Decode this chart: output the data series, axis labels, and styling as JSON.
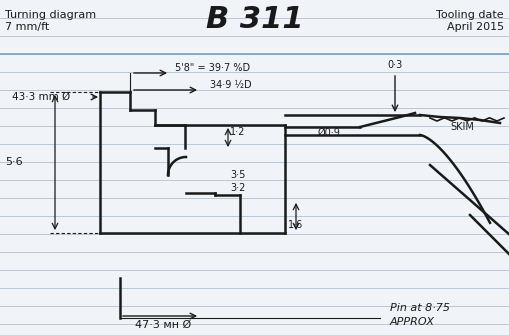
{
  "title": "B 311",
  "top_left_line1": "Turning diagram",
  "top_left_line2": "7 mm/ft",
  "top_right_line1": "Tooling date",
  "top_right_line2": "April 2015",
  "bg_color": "#f0f4f8",
  "line_color": "#1a1a1a",
  "ruled_line_color": "#b8c8d8",
  "annotations": {
    "dim_439": "43·3 mm Ø",
    "dim_58": "5'8\" = 39·7 %D",
    "dim_349": "34·9 ½D",
    "dim_03": "0·3",
    "dim_12": "1·2",
    "dim_35": "3·5",
    "dim_32": "3·2",
    "dim_16": "1·6",
    "dim_09": "Ø0·9",
    "dim_56": "5·6",
    "dim_skim": "SKIM",
    "dim_473": "47·3 мн Ø",
    "dim_pin": "Pin at 8·75",
    "dim_approx": "APPROX"
  },
  "fig_width": 5.09,
  "fig_height": 3.35,
  "dpi": 100
}
